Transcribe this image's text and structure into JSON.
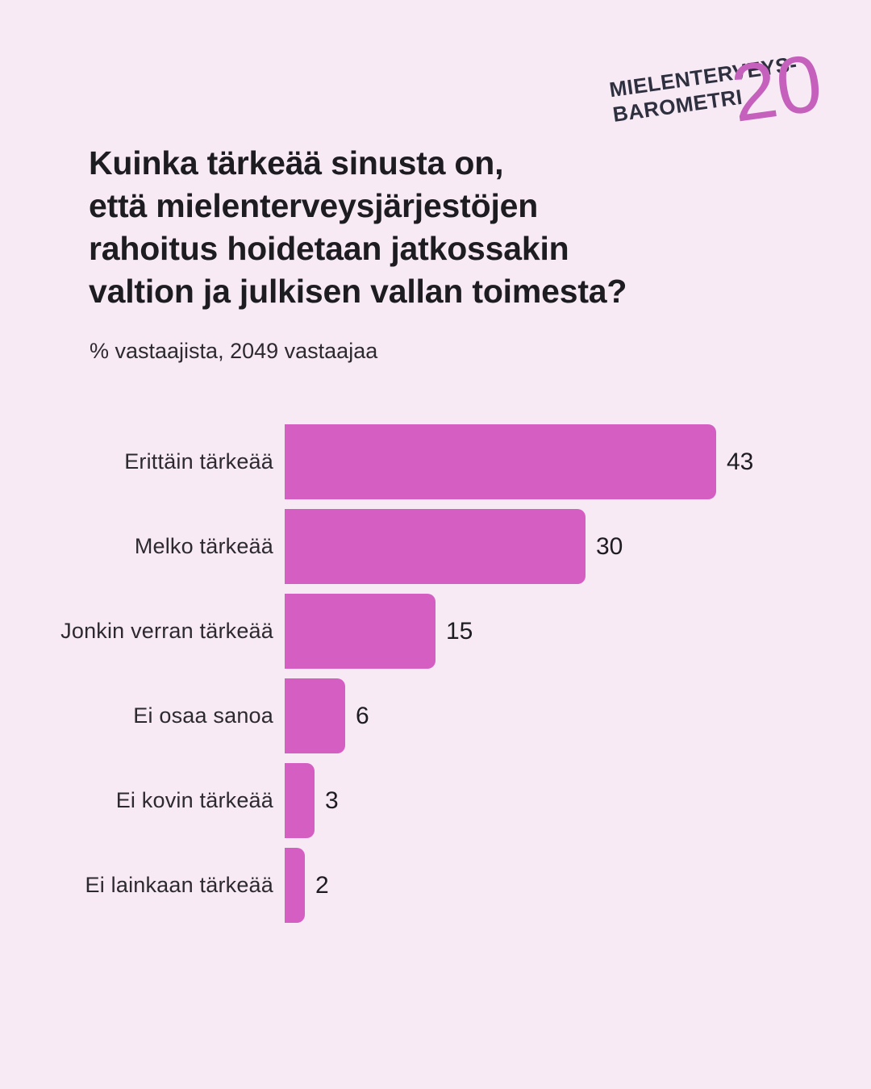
{
  "colors": {
    "background": "#f7eaf5",
    "bar": "#d45ec2",
    "text": "#1d1c20",
    "label_text": "#2c2a2e",
    "logo_text": "#2e3040",
    "logo_accent": "#c560bd"
  },
  "logo": {
    "line1": "MIELENTERVEYS-",
    "line2": "BAROMETRI",
    "badge": "20"
  },
  "title": {
    "full": "Kuinka tärkeää sinusta on, että mielenterveysjärjestöjen rahoitus hoidetaan jatkossakin valtion ja julkisen vallan toimesta?",
    "lines": [
      "Kuinka tärkeää sinusta on,",
      "että mielenterveysjärjestöjen",
      "rahoitus hoidetaan jatkossakin",
      "valtion ja julkisen vallan toimesta?"
    ]
  },
  "subtitle": "% vastaajista, 2049 vastaajaa",
  "chart_data": {
    "type": "bar",
    "orientation": "horizontal",
    "title": "Kuinka tärkeää sinusta on, että mielenterveysjärjestöjen rahoitus hoidetaan jatkossakin valtion ja julkisen vallan toimesta?",
    "subtitle": "% vastaajista, 2049 vastaajaa",
    "unit": "%",
    "n_respondents": 2049,
    "categories": [
      "Erittäin tärkeää",
      "Melko tärkeää",
      "Jonkin verran tärkeää",
      "Ei osaa sanoa",
      "Ei kovin tärkeää",
      "Ei lainkaan tärkeää"
    ],
    "values": [
      43,
      30,
      15,
      6,
      3,
      2
    ],
    "value_labels": true,
    "grid": false,
    "legend": false,
    "xlim": [
      0,
      50
    ]
  }
}
